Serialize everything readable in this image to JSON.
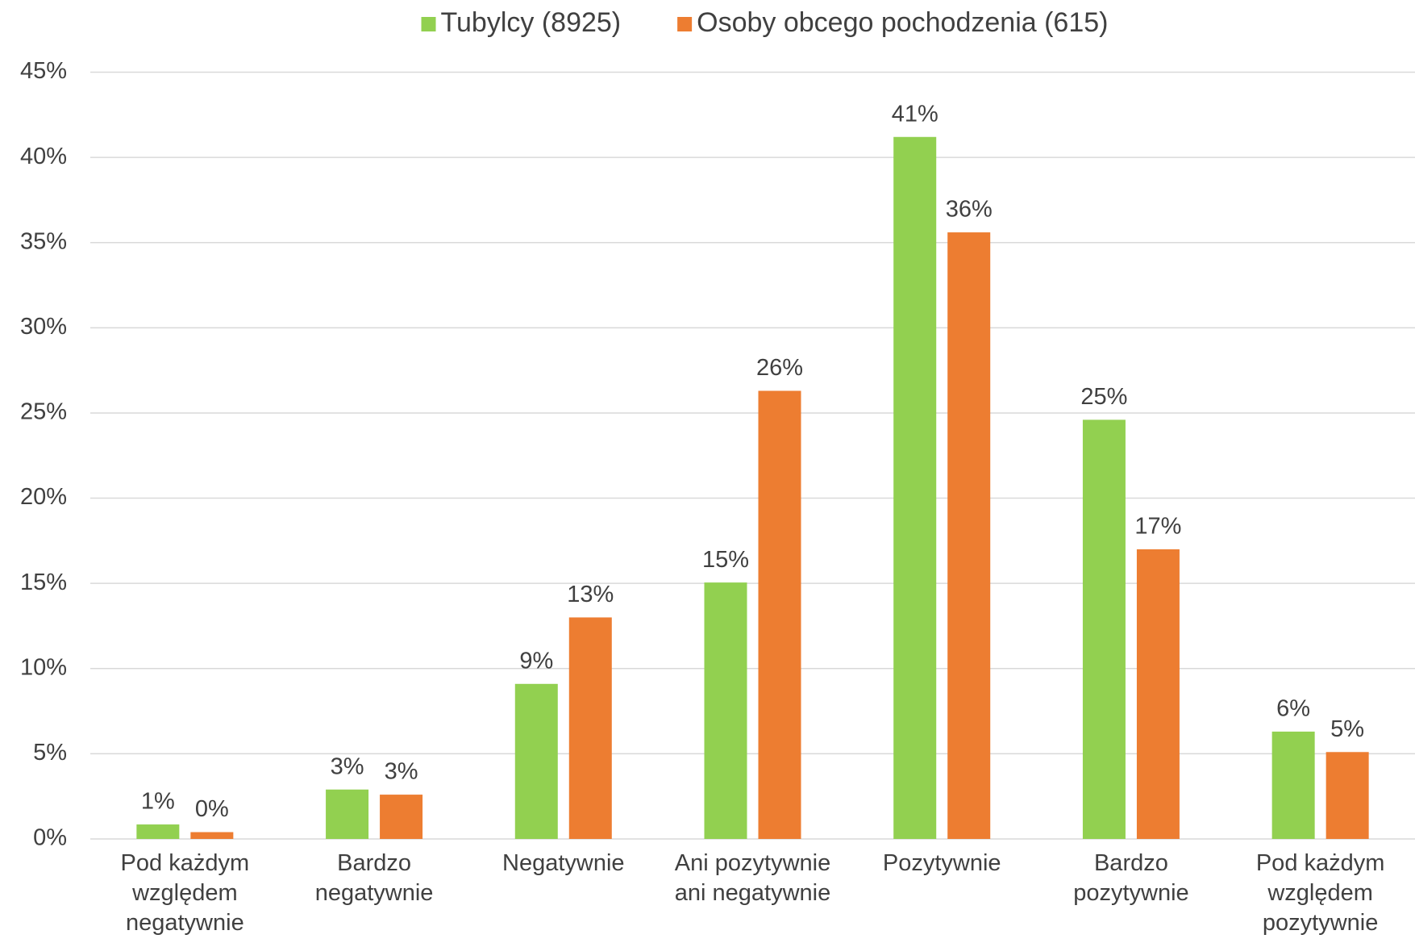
{
  "chart_data": {
    "type": "bar",
    "categories": [
      "Pod każdym względem negatywnie",
      "Bardzo negatywnie",
      "Negatywnie",
      "Ani pozytywnie ani negatywnie",
      "Pozytywnie",
      "Bardzo pozytywnie",
      "Pod każdym względem pozytywnie"
    ],
    "series": [
      {
        "name": "Tubylcy (8925)",
        "color": "#92d050",
        "values": [
          0.85,
          2.9,
          9.1,
          15.05,
          41.2,
          24.6,
          6.3
        ],
        "value_labels": [
          "1%",
          "3%",
          "9%",
          "15%",
          "41%",
          "25%",
          "6%"
        ]
      },
      {
        "name": "Osoby obcego pochodzenia (615)",
        "color": "#ed7d31",
        "values": [
          0.4,
          2.6,
          13.0,
          26.3,
          35.6,
          17.0,
          5.1
        ],
        "value_labels": [
          "0%",
          "3%",
          "13%",
          "26%",
          "36%",
          "17%",
          "5%"
        ]
      }
    ],
    "ylim": [
      0,
      45
    ],
    "yticks": [
      {
        "value": 0,
        "label": "0%"
      },
      {
        "value": 5,
        "label": "5%"
      },
      {
        "value": 10,
        "label": "10%"
      },
      {
        "value": 15,
        "label": "15%"
      },
      {
        "value": 20,
        "label": "20%"
      },
      {
        "value": 25,
        "label": "25%"
      },
      {
        "value": 30,
        "label": "30%"
      },
      {
        "value": 35,
        "label": "35%"
      },
      {
        "value": 40,
        "label": "40%"
      },
      {
        "value": 45,
        "label": "45%"
      }
    ],
    "grid": true,
    "legend": "top"
  }
}
